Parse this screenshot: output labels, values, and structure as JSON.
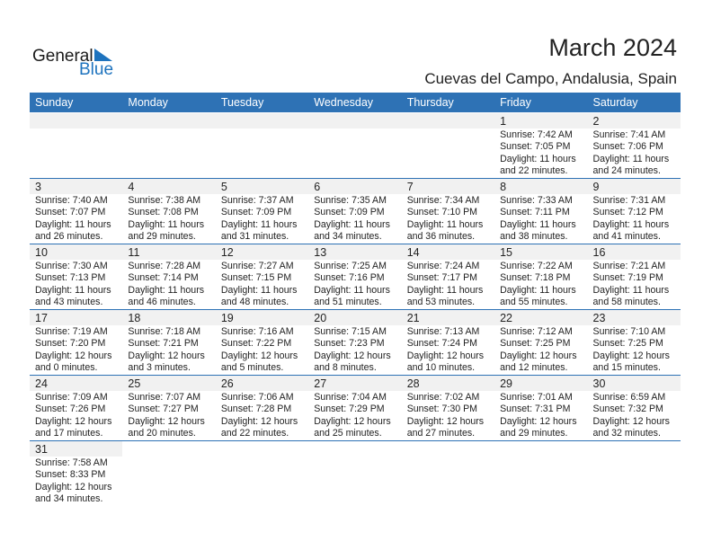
{
  "logo": {
    "text_general": "General",
    "text_blue": "Blue"
  },
  "title": "March 2024",
  "subtitle": "Cuevas del Campo, Andalusia, Spain",
  "colors": {
    "header": "#2e72b5",
    "day_strip": "#f1f1f1"
  },
  "weekdays": [
    "Sunday",
    "Monday",
    "Tuesday",
    "Wednesday",
    "Thursday",
    "Friday",
    "Saturday"
  ],
  "weeks": [
    [
      null,
      null,
      null,
      null,
      null,
      {
        "day": "1",
        "sunrise": "Sunrise: 7:42 AM",
        "sunset": "Sunset: 7:05 PM",
        "daylight1": "Daylight: 11 hours",
        "daylight2": "and 22 minutes."
      },
      {
        "day": "2",
        "sunrise": "Sunrise: 7:41 AM",
        "sunset": "Sunset: 7:06 PM",
        "daylight1": "Daylight: 11 hours",
        "daylight2": "and 24 minutes."
      }
    ],
    [
      {
        "day": "3",
        "sunrise": "Sunrise: 7:40 AM",
        "sunset": "Sunset: 7:07 PM",
        "daylight1": "Daylight: 11 hours",
        "daylight2": "and 26 minutes."
      },
      {
        "day": "4",
        "sunrise": "Sunrise: 7:38 AM",
        "sunset": "Sunset: 7:08 PM",
        "daylight1": "Daylight: 11 hours",
        "daylight2": "and 29 minutes."
      },
      {
        "day": "5",
        "sunrise": "Sunrise: 7:37 AM",
        "sunset": "Sunset: 7:09 PM",
        "daylight1": "Daylight: 11 hours",
        "daylight2": "and 31 minutes."
      },
      {
        "day": "6",
        "sunrise": "Sunrise: 7:35 AM",
        "sunset": "Sunset: 7:09 PM",
        "daylight1": "Daylight: 11 hours",
        "daylight2": "and 34 minutes."
      },
      {
        "day": "7",
        "sunrise": "Sunrise: 7:34 AM",
        "sunset": "Sunset: 7:10 PM",
        "daylight1": "Daylight: 11 hours",
        "daylight2": "and 36 minutes."
      },
      {
        "day": "8",
        "sunrise": "Sunrise: 7:33 AM",
        "sunset": "Sunset: 7:11 PM",
        "daylight1": "Daylight: 11 hours",
        "daylight2": "and 38 minutes."
      },
      {
        "day": "9",
        "sunrise": "Sunrise: 7:31 AM",
        "sunset": "Sunset: 7:12 PM",
        "daylight1": "Daylight: 11 hours",
        "daylight2": "and 41 minutes."
      }
    ],
    [
      {
        "day": "10",
        "sunrise": "Sunrise: 7:30 AM",
        "sunset": "Sunset: 7:13 PM",
        "daylight1": "Daylight: 11 hours",
        "daylight2": "and 43 minutes."
      },
      {
        "day": "11",
        "sunrise": "Sunrise: 7:28 AM",
        "sunset": "Sunset: 7:14 PM",
        "daylight1": "Daylight: 11 hours",
        "daylight2": "and 46 minutes."
      },
      {
        "day": "12",
        "sunrise": "Sunrise: 7:27 AM",
        "sunset": "Sunset: 7:15 PM",
        "daylight1": "Daylight: 11 hours",
        "daylight2": "and 48 minutes."
      },
      {
        "day": "13",
        "sunrise": "Sunrise: 7:25 AM",
        "sunset": "Sunset: 7:16 PM",
        "daylight1": "Daylight: 11 hours",
        "daylight2": "and 51 minutes."
      },
      {
        "day": "14",
        "sunrise": "Sunrise: 7:24 AM",
        "sunset": "Sunset: 7:17 PM",
        "daylight1": "Daylight: 11 hours",
        "daylight2": "and 53 minutes."
      },
      {
        "day": "15",
        "sunrise": "Sunrise: 7:22 AM",
        "sunset": "Sunset: 7:18 PM",
        "daylight1": "Daylight: 11 hours",
        "daylight2": "and 55 minutes."
      },
      {
        "day": "16",
        "sunrise": "Sunrise: 7:21 AM",
        "sunset": "Sunset: 7:19 PM",
        "daylight1": "Daylight: 11 hours",
        "daylight2": "and 58 minutes."
      }
    ],
    [
      {
        "day": "17",
        "sunrise": "Sunrise: 7:19 AM",
        "sunset": "Sunset: 7:20 PM",
        "daylight1": "Daylight: 12 hours",
        "daylight2": "and 0 minutes."
      },
      {
        "day": "18",
        "sunrise": "Sunrise: 7:18 AM",
        "sunset": "Sunset: 7:21 PM",
        "daylight1": "Daylight: 12 hours",
        "daylight2": "and 3 minutes."
      },
      {
        "day": "19",
        "sunrise": "Sunrise: 7:16 AM",
        "sunset": "Sunset: 7:22 PM",
        "daylight1": "Daylight: 12 hours",
        "daylight2": "and 5 minutes."
      },
      {
        "day": "20",
        "sunrise": "Sunrise: 7:15 AM",
        "sunset": "Sunset: 7:23 PM",
        "daylight1": "Daylight: 12 hours",
        "daylight2": "and 8 minutes."
      },
      {
        "day": "21",
        "sunrise": "Sunrise: 7:13 AM",
        "sunset": "Sunset: 7:24 PM",
        "daylight1": "Daylight: 12 hours",
        "daylight2": "and 10 minutes."
      },
      {
        "day": "22",
        "sunrise": "Sunrise: 7:12 AM",
        "sunset": "Sunset: 7:25 PM",
        "daylight1": "Daylight: 12 hours",
        "daylight2": "and 12 minutes."
      },
      {
        "day": "23",
        "sunrise": "Sunrise: 7:10 AM",
        "sunset": "Sunset: 7:25 PM",
        "daylight1": "Daylight: 12 hours",
        "daylight2": "and 15 minutes."
      }
    ],
    [
      {
        "day": "24",
        "sunrise": "Sunrise: 7:09 AM",
        "sunset": "Sunset: 7:26 PM",
        "daylight1": "Daylight: 12 hours",
        "daylight2": "and 17 minutes."
      },
      {
        "day": "25",
        "sunrise": "Sunrise: 7:07 AM",
        "sunset": "Sunset: 7:27 PM",
        "daylight1": "Daylight: 12 hours",
        "daylight2": "and 20 minutes."
      },
      {
        "day": "26",
        "sunrise": "Sunrise: 7:06 AM",
        "sunset": "Sunset: 7:28 PM",
        "daylight1": "Daylight: 12 hours",
        "daylight2": "and 22 minutes."
      },
      {
        "day": "27",
        "sunrise": "Sunrise: 7:04 AM",
        "sunset": "Sunset: 7:29 PM",
        "daylight1": "Daylight: 12 hours",
        "daylight2": "and 25 minutes."
      },
      {
        "day": "28",
        "sunrise": "Sunrise: 7:02 AM",
        "sunset": "Sunset: 7:30 PM",
        "daylight1": "Daylight: 12 hours",
        "daylight2": "and 27 minutes."
      },
      {
        "day": "29",
        "sunrise": "Sunrise: 7:01 AM",
        "sunset": "Sunset: 7:31 PM",
        "daylight1": "Daylight: 12 hours",
        "daylight2": "and 29 minutes."
      },
      {
        "day": "30",
        "sunrise": "Sunrise: 6:59 AM",
        "sunset": "Sunset: 7:32 PM",
        "daylight1": "Daylight: 12 hours",
        "daylight2": "and 32 minutes."
      }
    ],
    [
      {
        "day": "31",
        "sunrise": "Sunrise: 7:58 AM",
        "sunset": "Sunset: 8:33 PM",
        "daylight1": "Daylight: 12 hours",
        "daylight2": "and 34 minutes."
      }
    ]
  ]
}
